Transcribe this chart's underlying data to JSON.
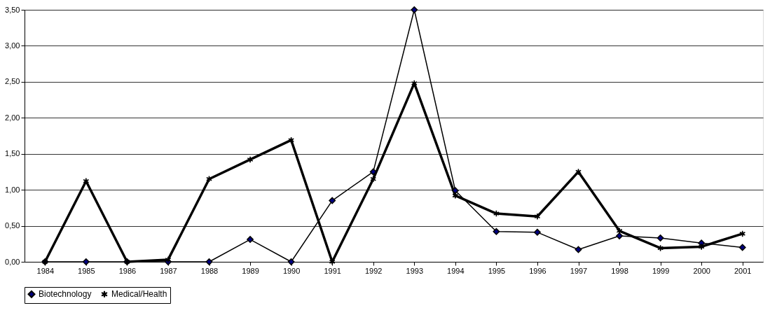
{
  "chart_data": {
    "type": "line",
    "categories": [
      "1984",
      "1985",
      "1986",
      "1987",
      "1988",
      "1989",
      "1990",
      "1991",
      "1992",
      "1993",
      "1994",
      "1995",
      "1996",
      "1997",
      "1998",
      "1999",
      "2000",
      "2001"
    ],
    "series": [
      {
        "name": "Biotechnology",
        "color": "#000080",
        "marker": "diamond",
        "values": [
          0,
          0,
          0,
          0,
          0,
          0.31,
          0,
          0.85,
          1.25,
          3.5,
          0.99,
          0.42,
          0.41,
          0.17,
          0.36,
          0.33,
          0.26,
          0.2
        ]
      },
      {
        "name": "Medical/Health",
        "color": "#000000",
        "marker": "cross",
        "values": [
          0,
          1.12,
          0,
          0.03,
          1.15,
          1.42,
          1.69,
          0,
          1.15,
          2.48,
          0.92,
          0.67,
          0.63,
          1.25,
          0.43,
          0.19,
          0.21,
          0.39
        ]
      }
    ],
    "ylim": [
      0,
      3.5
    ],
    "yticks": [
      {
        "value": 0,
        "label": "0,00"
      },
      {
        "value": 0.5,
        "label": "0,50"
      },
      {
        "value": 1,
        "label": "1,00"
      },
      {
        "value": 1.5,
        "label": "1,50"
      },
      {
        "value": 2,
        "label": "2,00"
      },
      {
        "value": 2.5,
        "label": "2,50"
      },
      {
        "value": 3,
        "label": "3,00"
      },
      {
        "value": 3.5,
        "label": "3,50"
      }
    ],
    "grid": "y",
    "legend": "bottom",
    "line_style": "solid"
  }
}
